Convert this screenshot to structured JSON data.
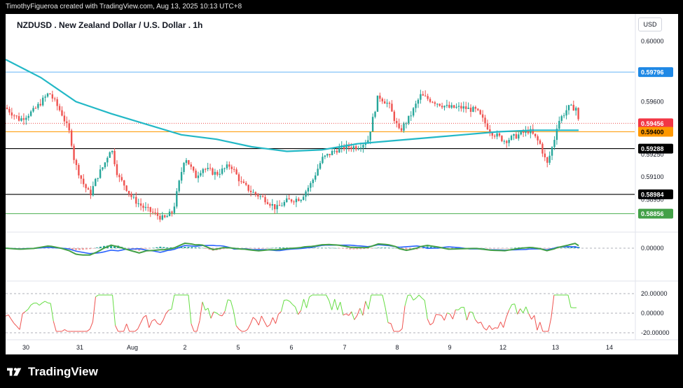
{
  "header": {
    "attribution": "TimothyFigueroa created with TradingView.com, Aug 13, 2025 10:13 UTC+8"
  },
  "chart": {
    "title": "NZDUSD . New Zealand Dollar / U.S. Dollar . 1h",
    "currency": "USD"
  },
  "footer": {
    "brand": "TradingView"
  },
  "colors": {
    "up": "#26a69a",
    "down": "#ef5350",
    "ma": "#22b8c6",
    "blue_line": "#2962ff",
    "orange_line": "#ff9800",
    "green_line": "#4caf50",
    "macd_fast": "#43a047",
    "macd_slow": "#2962ff",
    "osc_up": "#66dd44",
    "osc_down": "#ef5350"
  },
  "chart_data": {
    "type": "candlestick",
    "symbol": "NZDUSD",
    "interval": "1h",
    "ylim": [
      0.5878,
      0.6008
    ],
    "y_ticks": [
      "0.60000",
      "0.59600",
      "0.59250",
      "0.59100",
      "0.58950"
    ],
    "x_tick_labels": [
      "30",
      "31",
      "Aug",
      "2",
      "5",
      "6",
      "7",
      "8",
      "9",
      "12",
      "13",
      "14"
    ],
    "price_levels": [
      {
        "value": "0.59796",
        "style": "blue"
      },
      {
        "value": "0.59456",
        "style": "red-dotted"
      },
      {
        "value": "0.59400",
        "style": "orange"
      },
      {
        "value": "0.59288",
        "style": "black"
      },
      {
        "value": "0.58984",
        "style": "black"
      },
      {
        "value": "0.58856",
        "style": "green"
      }
    ],
    "panel_labels": {
      "macd": [
        "0.00000"
      ],
      "oscillator": [
        "20.00000",
        "0.00000",
        "-20.00000"
      ]
    },
    "ma_line": [
      [
        0,
        0.5988
      ],
      [
        50,
        0.5976
      ],
      [
        100,
        0.596
      ],
      [
        150,
        0.5952
      ],
      [
        200,
        0.5945
      ],
      [
        250,
        0.5938
      ],
      [
        300,
        0.5935
      ],
      [
        350,
        0.593
      ],
      [
        400,
        0.5927
      ],
      [
        450,
        0.5928
      ],
      [
        500,
        0.5932
      ],
      [
        550,
        0.5934
      ],
      [
        600,
        0.5936
      ],
      [
        650,
        0.5938
      ],
      [
        700,
        0.594
      ],
      [
        750,
        0.5941
      ],
      [
        800,
        0.5941
      ],
      [
        815,
        0.5941
      ]
    ],
    "price_path": [
      [
        0,
        0.5956
      ],
      [
        20,
        0.5948
      ],
      [
        40,
        0.5954
      ],
      [
        62,
        0.5966
      ],
      [
        80,
        0.5952
      ],
      [
        92,
        0.5938
      ],
      [
        98,
        0.592
      ],
      [
        110,
        0.5906
      ],
      [
        120,
        0.5898
      ],
      [
        130,
        0.591
      ],
      [
        140,
        0.5918
      ],
      [
        150,
        0.593
      ],
      [
        160,
        0.591
      ],
      [
        170,
        0.5904
      ],
      [
        180,
        0.5896
      ],
      [
        195,
        0.589
      ],
      [
        210,
        0.5886
      ],
      [
        225,
        0.5882
      ],
      [
        238,
        0.5887
      ],
      [
        243,
        0.5898
      ],
      [
        255,
        0.5924
      ],
      [
        270,
        0.591
      ],
      [
        280,
        0.5916
      ],
      [
        300,
        0.5912
      ],
      [
        320,
        0.5918
      ],
      [
        335,
        0.5906
      ],
      [
        350,
        0.59
      ],
      [
        370,
        0.5895
      ],
      [
        385,
        0.5889
      ],
      [
        400,
        0.5894
      ],
      [
        420,
        0.5896
      ],
      [
        435,
        0.5906
      ],
      [
        450,
        0.5922
      ],
      [
        470,
        0.5928
      ],
      [
        485,
        0.593
      ],
      [
        500,
        0.593
      ],
      [
        515,
        0.5934
      ],
      [
        530,
        0.5964
      ],
      [
        545,
        0.5958
      ],
      [
        560,
        0.594
      ],
      [
        575,
        0.595
      ],
      [
        590,
        0.5964
      ],
      [
        610,
        0.596
      ],
      [
        630,
        0.5956
      ],
      [
        650,
        0.5956
      ],
      [
        670,
        0.5954
      ],
      [
        690,
        0.594
      ],
      [
        710,
        0.5934
      ],
      [
        730,
        0.5938
      ],
      [
        745,
        0.5941
      ],
      [
        760,
        0.5932
      ],
      [
        770,
        0.5918
      ],
      [
        780,
        0.5934
      ],
      [
        785,
        0.5946
      ],
      [
        800,
        0.5956
      ],
      [
        812,
        0.5956
      ],
      [
        815,
        0.5946
      ]
    ]
  }
}
